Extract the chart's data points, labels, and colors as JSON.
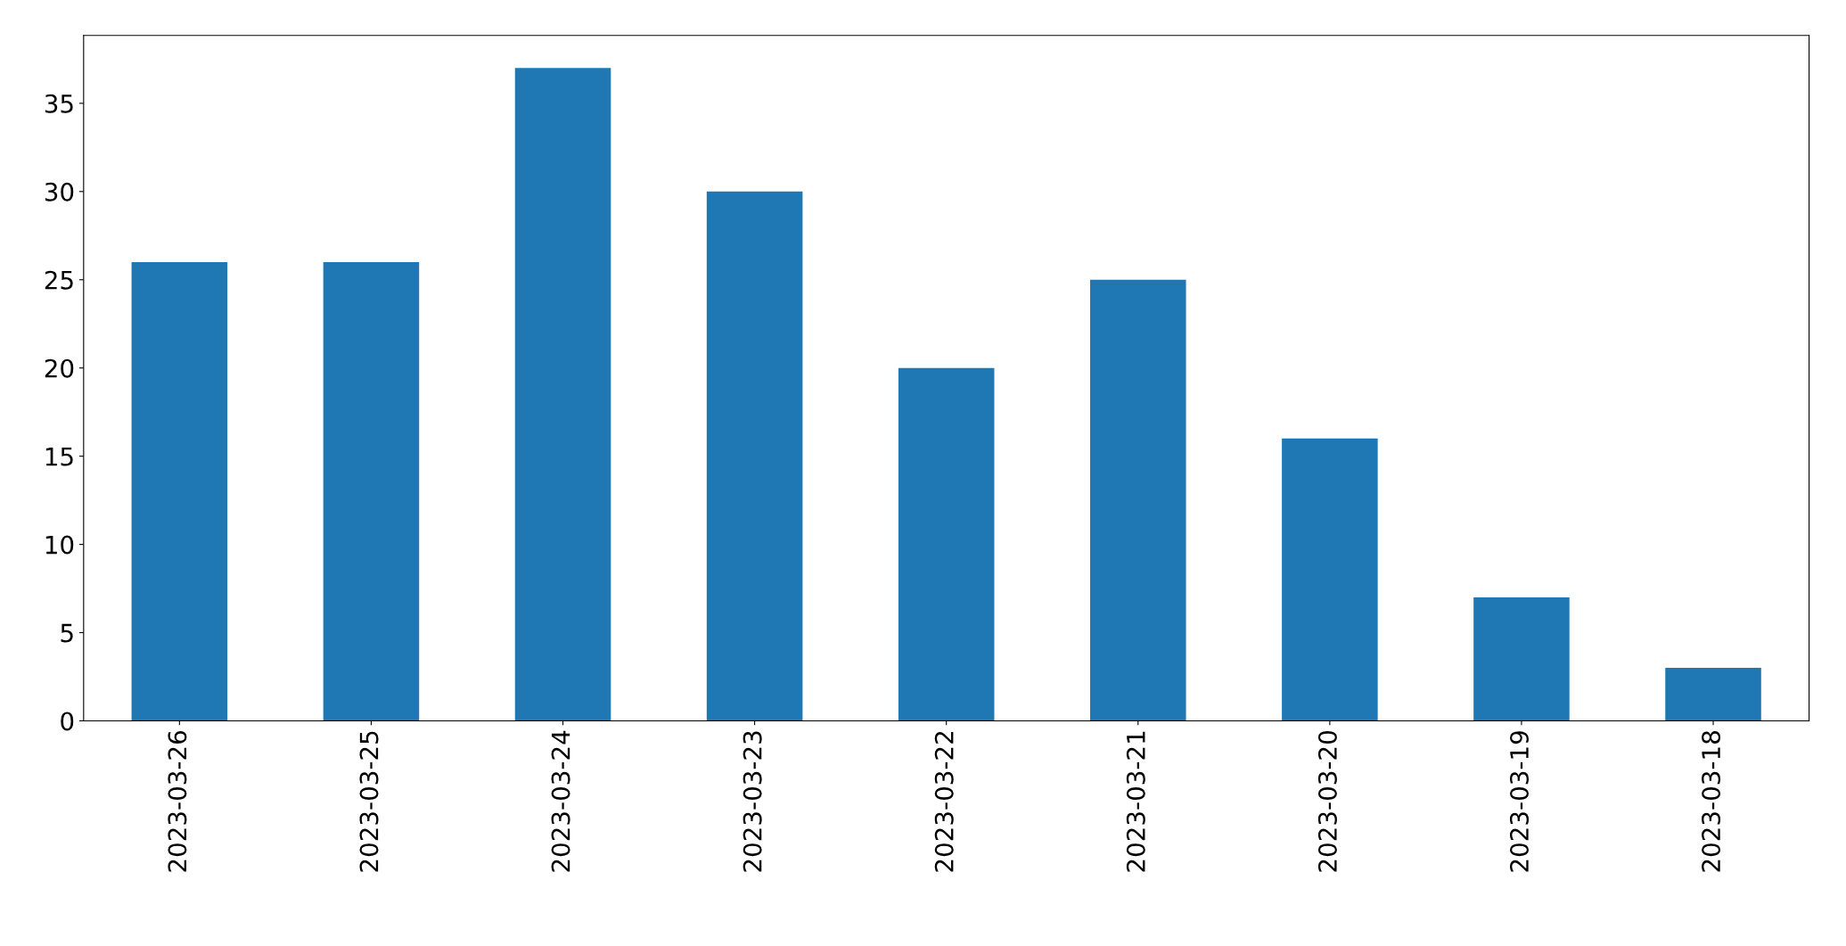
{
  "chart_data": {
    "type": "bar",
    "categories": [
      "2023-03-26",
      "2023-03-25",
      "2023-03-24",
      "2023-03-23",
      "2023-03-22",
      "2023-03-21",
      "2023-03-20",
      "2023-03-19",
      "2023-03-18"
    ],
    "values": [
      26,
      26,
      37,
      30,
      20,
      25,
      16,
      7,
      3
    ],
    "color": "#1f77b4",
    "ylim": [
      0,
      38.85
    ],
    "yticks": [
      0,
      5,
      10,
      15,
      20,
      25,
      30,
      35
    ],
    "grid": false
  }
}
